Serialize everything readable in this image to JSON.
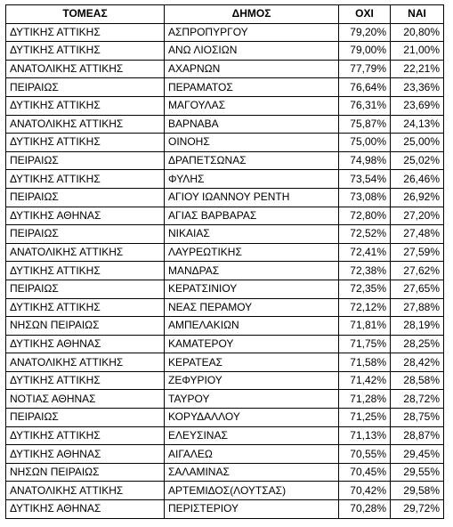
{
  "table": {
    "headers": [
      "ΤΟΜΕΑΣ",
      "ΔΗΜΟΣ",
      "ΟΧΙ",
      "ΝΑΙ"
    ],
    "rows": [
      [
        "ΔΥΤΙΚΗΣ ΑΤΤΙΚΗΣ",
        "ΑΣΠΡΟΠΥΡΓΟΥ",
        "79,20%",
        "20,80%"
      ],
      [
        "ΔΥΤΙΚΗΣ ΑΤΤΙΚΗΣ",
        "ΑΝΩ ΛΙΟΣΙΩΝ",
        "79,00%",
        "21,00%"
      ],
      [
        "ΑΝΑΤΟΛΙΚΗΣ ΑΤΤΙΚΗΣ",
        "ΑΧΑΡΝΩΝ",
        "77,79%",
        "22,21%"
      ],
      [
        "ΠΕΙΡΑΙΩΣ",
        "ΠΕΡΑΜΑΤΟΣ",
        "76,64%",
        "23,36%"
      ],
      [
        "ΔΥΤΙΚΗΣ ΑΤΤΙΚΗΣ",
        "ΜΑΓΟΥΛΑΣ",
        "76,31%",
        "23,69%"
      ],
      [
        "ΑΝΑΤΟΛΙΚΗΣ ΑΤΤΙΚΗΣ",
        "ΒΑΡΝΑΒΑ",
        "75,87%",
        "24,13%"
      ],
      [
        "ΔΥΤΙΚΗΣ ΑΤΤΙΚΗΣ",
        "ΟΙΝΟΗΣ",
        "75,00%",
        "25,00%"
      ],
      [
        "ΠΕΙΡΑΙΩΣ",
        "ΔΡΑΠΕΤΣΩΝΑΣ",
        "74,98%",
        "25,02%"
      ],
      [
        "ΔΥΤΙΚΗΣ ΑΤΤΙΚΗΣ",
        "ΦΥΛΗΣ",
        "73,54%",
        "26,46%"
      ],
      [
        "ΠΕΙΡΑΙΩΣ",
        "ΑΓΙΟΥ ΙΩΑΝΝΟΥ ΡΕΝΤΗ",
        "73,08%",
        "26,92%"
      ],
      [
        "ΔΥΤΙΚΗΣ ΑΘΗΝΑΣ",
        "ΑΓΙΑΣ ΒΑΡΒΑΡΑΣ",
        "72,80%",
        "27,20%"
      ],
      [
        "ΠΕΙΡΑΙΩΣ",
        "ΝΙΚΑΙΑΣ",
        "72,52%",
        "27,48%"
      ],
      [
        "ΑΝΑΤΟΛΙΚΗΣ ΑΤΤΙΚΗΣ",
        "ΛΑΥΡΕΩΤΙΚΗΣ",
        "72,41%",
        "27,59%"
      ],
      [
        "ΔΥΤΙΚΗΣ ΑΤΤΙΚΗΣ",
        "ΜΑΝΔΡΑΣ",
        "72,38%",
        "27,62%"
      ],
      [
        "ΠΕΙΡΑΙΩΣ",
        "ΚΕΡΑΤΣΙΝΙΟΥ",
        "72,35%",
        "27,65%"
      ],
      [
        "ΔΥΤΙΚΗΣ ΑΤΤΙΚΗΣ",
        "ΝΕΑΣ ΠΕΡΑΜΟΥ",
        "72,12%",
        "27,88%"
      ],
      [
        "ΝΗΣΩΝ ΠΕΙΡΑΙΩΣ",
        "ΑΜΠΕΛΑΚΙΩΝ",
        "71,81%",
        "28,19%"
      ],
      [
        "ΔΥΤΙΚΗΣ ΑΘΗΝΑΣ",
        "ΚΑΜΑΤΕΡΟΥ",
        "71,75%",
        "28,25%"
      ],
      [
        "ΑΝΑΤΟΛΙΚΗΣ ΑΤΤΙΚΗΣ",
        "ΚΕΡΑΤΕΑΣ",
        "71,58%",
        "28,42%"
      ],
      [
        "ΔΥΤΙΚΗΣ ΑΤΤΙΚΗΣ",
        "ΖΕΦΥΡΙΟΥ",
        "71,42%",
        "28,58%"
      ],
      [
        "ΝΟΤΙΑΣ ΑΘΗΝΑΣ",
        "ΤΑΥΡΟΥ",
        "71,28%",
        "28,72%"
      ],
      [
        "ΠΕΙΡΑΙΩΣ",
        "ΚΟΡΥΔΑΛΛΟΥ",
        "71,25%",
        "28,75%"
      ],
      [
        "ΔΥΤΙΚΗΣ ΑΤΤΙΚΗΣ",
        "ΕΛΕΥΣΙΝΑΣ",
        "71,13%",
        "28,87%"
      ],
      [
        "ΔΥΤΙΚΗΣ ΑΘΗΝΑΣ",
        "ΑΙΓΑΛΕΩ",
        "70,55%",
        "29,45%"
      ],
      [
        "ΝΗΣΩΝ ΠΕΙΡΑΙΩΣ",
        "ΣΑΛΑΜΙΝΑΣ",
        "70,45%",
        "29,55%"
      ],
      [
        "ΑΝΑΤΟΛΙΚΗΣ ΑΤΤΙΚΗΣ",
        "ΑΡΤΕΜΙΔΟΣ(ΛΟΥΤΣΑΣ)",
        "70,42%",
        "29,58%"
      ],
      [
        "ΔΥΤΙΚΗΣ ΑΘΗΝΑΣ",
        "ΠΕΡΙΣΤΕΡΙΟΥ",
        "70,28%",
        "29,72%"
      ]
    ]
  }
}
